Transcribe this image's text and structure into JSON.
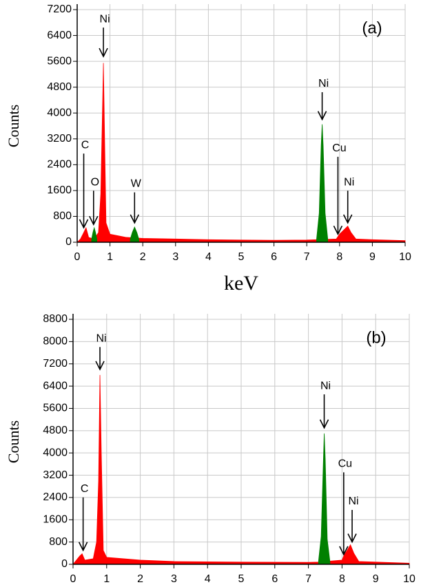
{
  "chart_data": [
    {
      "type": "area",
      "panel_label": "(a)",
      "ylabel": "Counts",
      "xlabel": "keV",
      "xlim": [
        0,
        10
      ],
      "xticks": [
        0,
        1,
        2,
        3,
        4,
        5,
        6,
        7,
        8,
        9,
        10
      ],
      "ylim": [
        0,
        7200
      ],
      "yticks": [
        0,
        800,
        1600,
        2400,
        3200,
        4000,
        4800,
        5600,
        6400,
        7200
      ],
      "grid": true,
      "series": [
        {
          "color": "#ff0000",
          "x": [
            0,
            0.1,
            0.2,
            0.27,
            0.35,
            0.45,
            0.55,
            0.65,
            0.72,
            0.78,
            0.8,
            0.84,
            0.88,
            1.0,
            1.5,
            2,
            3,
            4,
            5,
            6,
            7,
            7.3,
            7.9,
            8.0,
            8.1,
            8.2,
            8.25,
            8.35,
            8.5,
            9,
            10
          ],
          "values": [
            0,
            100,
            300,
            450,
            150,
            120,
            150,
            300,
            1500,
            4500,
            5550,
            3000,
            600,
            250,
            150,
            120,
            100,
            80,
            70,
            60,
            70,
            80,
            100,
            250,
            350,
            450,
            500,
            300,
            100,
            80,
            50
          ]
        },
        {
          "color": "#008000",
          "x": [
            0.44,
            0.48,
            0.52,
            0.56,
            0.6,
            1.0,
            1.62,
            1.68,
            1.75,
            1.82,
            1.88,
            5.0,
            7.3,
            7.38,
            7.44,
            7.47,
            7.5,
            7.56,
            7.64
          ],
          "values": [
            100,
            300,
            450,
            300,
            100,
            null,
            100,
            300,
            470,
            300,
            100,
            null,
            100,
            900,
            3000,
            3650,
            3000,
            900,
            100
          ]
        }
      ],
      "annotations": [
        {
          "text": "Ni",
          "x": 0.8,
          "y": 5750,
          "text_y": 6900
        },
        {
          "text": "C",
          "x": 0.2,
          "y": 450,
          "text_y": 3000
        },
        {
          "text": "O",
          "x": 0.5,
          "y": 550,
          "text_y": 1850
        },
        {
          "text": "W",
          "x": 1.75,
          "y": 600,
          "text_y": 1800
        },
        {
          "text": "Ni",
          "x": 7.47,
          "y": 3800,
          "text_y": 4900
        },
        {
          "text": "Cu",
          "x": 7.95,
          "y": 250,
          "text_y": 2900
        },
        {
          "text": "Ni",
          "x": 8.25,
          "y": 600,
          "text_y": 1850
        }
      ]
    },
    {
      "type": "area",
      "panel_label": "(b)",
      "ylabel": "Counts",
      "xlim": [
        0,
        10
      ],
      "xticks": [
        0,
        1,
        2,
        3,
        4,
        5,
        6,
        7,
        8,
        9,
        10
      ],
      "ylim": [
        0,
        8800
      ],
      "yticks": [
        0,
        800,
        1600,
        2400,
        3200,
        4000,
        4800,
        5600,
        6400,
        7200,
        8000,
        8800
      ],
      "grid": true,
      "series": [
        {
          "color": "#ff0000",
          "x": [
            0,
            0.2,
            0.27,
            0.35,
            0.6,
            0.7,
            0.76,
            0.8,
            0.84,
            0.9,
            1,
            2,
            3,
            5,
            7,
            7.3,
            8,
            8.05,
            8.15,
            8.25,
            8.35,
            8.5,
            10
          ],
          "values": [
            0,
            300,
            380,
            150,
            200,
            800,
            3000,
            6800,
            4000,
            500,
            250,
            150,
            100,
            80,
            70,
            80,
            150,
            300,
            500,
            700,
            400,
            100,
            40
          ]
        },
        {
          "color": "#008000",
          "x": [
            7.3,
            7.38,
            7.44,
            7.47,
            7.5,
            7.56,
            7.64
          ],
          "values": [
            100,
            1000,
            3500,
            4700,
            3800,
            900,
            100
          ]
        }
      ],
      "annotations": [
        {
          "text": "Ni",
          "x": 0.8,
          "y": 7000,
          "text_y": 8100
        },
        {
          "text": "C",
          "x": 0.3,
          "y": 500,
          "text_y": 2700
        },
        {
          "text": "Ni",
          "x": 7.47,
          "y": 4900,
          "text_y": 6400
        },
        {
          "text": "Cu",
          "x": 8.05,
          "y": 350,
          "text_y": 3600
        },
        {
          "text": "Ni",
          "x": 8.3,
          "y": 800,
          "text_y": 2250
        }
      ]
    }
  ]
}
